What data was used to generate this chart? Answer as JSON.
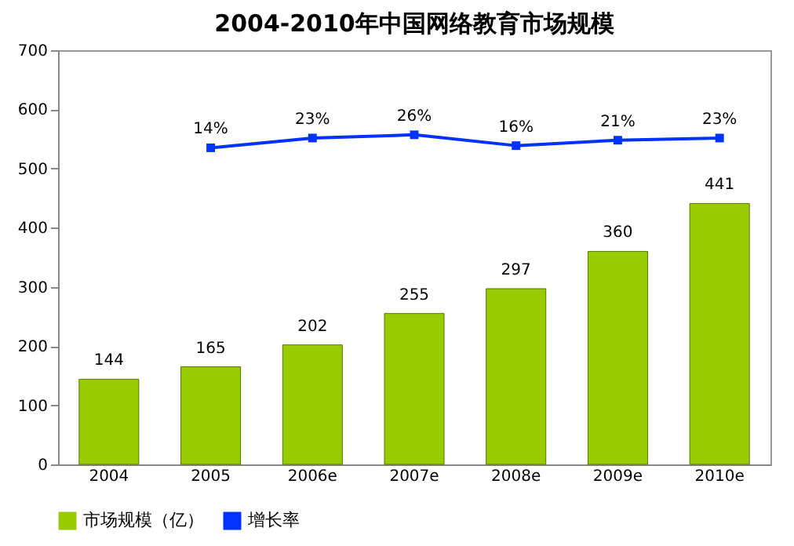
{
  "chart_data": {
    "type": "bar",
    "title": "2004-2010年中国网络教育市场规模",
    "categories": [
      "2004",
      "2005",
      "2006e",
      "2007e",
      "2008e",
      "2009e",
      "2010e"
    ],
    "series": [
      {
        "name": "市场规模（亿）",
        "color": "#99cc00",
        "values": [
          144,
          165,
          202,
          255,
          297,
          360,
          441
        ]
      },
      {
        "name": "增长率",
        "type": "line",
        "axis": "y2",
        "color": "#0033ff",
        "marker": "square",
        "values": [
          null,
          14,
          23,
          26,
          16,
          21,
          23
        ],
        "value_labels": [
          null,
          "14%",
          "23%",
          "26%",
          "16%",
          "21%",
          "23%"
        ]
      }
    ],
    "data_labels": true,
    "ylim": [
      0,
      700
    ],
    "yticks": [
      0,
      100,
      200,
      300,
      400,
      500,
      600,
      700
    ],
    "y2lim": [
      -278,
      104
    ],
    "relative": false,
    "grid": false,
    "legend": "bottom"
  }
}
